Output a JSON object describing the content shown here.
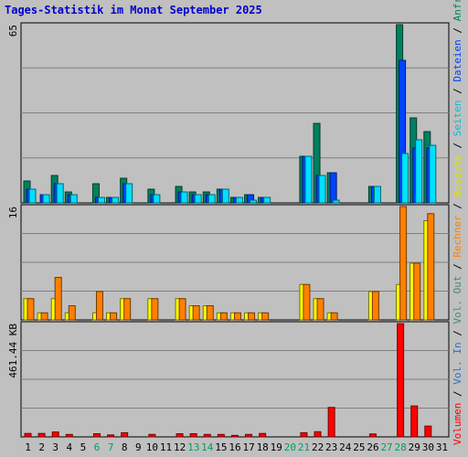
{
  "chart_data": {
    "type": "bar",
    "title": "Tages-Statistik im Monat September 2025",
    "categories": [
      "1",
      "2",
      "3",
      "4",
      "5",
      "6",
      "7",
      "8",
      "9",
      "10",
      "11",
      "12",
      "13",
      "14",
      "15",
      "16",
      "17",
      "18",
      "19",
      "20",
      "21",
      "22",
      "23",
      "24",
      "25",
      "26",
      "27",
      "28",
      "29",
      "30",
      "31"
    ],
    "weekend_days": [
      "6",
      "7",
      "13",
      "14",
      "20",
      "21",
      "27",
      "28"
    ],
    "panels": [
      {
        "id": "top",
        "axis_label": "65",
        "ylim": [
          0,
          65
        ],
        "series": [
          {
            "key": "hits",
            "color": "#008060",
            "values": [
              8,
              0,
              10,
              4,
              0,
              7,
              2,
              9,
              0,
              5,
              0,
              6,
              4,
              4,
              5,
              2,
              3,
              2,
              0,
              0,
              17,
              29,
              11,
              0,
              0,
              6,
              0,
              65,
              31,
              26,
              0
            ]
          },
          {
            "key": "files",
            "color": "#0042ff",
            "values": [
              5,
              3,
              7,
              3,
              0,
              2,
              2,
              7,
              0,
              3,
              0,
              4,
              3,
              3,
              5,
              2,
              3,
              2,
              0,
              0,
              17,
              10,
              11,
              0,
              0,
              6,
              0,
              52,
              20,
              20,
              0
            ]
          },
          {
            "key": "pages",
            "color": "#00e0ff",
            "values": [
              5,
              3,
              7,
              3,
              0,
              2,
              2,
              7,
              0,
              3,
              0,
              4,
              3,
              3,
              5,
              2,
              1,
              2,
              0,
              0,
              17,
              10,
              1,
              0,
              0,
              6,
              0,
              18,
              23,
              21,
              0
            ]
          }
        ]
      },
      {
        "id": "mid",
        "axis_label": "16",
        "ylim": [
          0,
          16
        ],
        "series": [
          {
            "key": "visits",
            "color": "#ffff00",
            "values": [
              3,
              1,
              3,
              1,
              0,
              1,
              1,
              3,
              0,
              3,
              0,
              3,
              2,
              2,
              1,
              1,
              1,
              1,
              0,
              0,
              5,
              3,
              1,
              0,
              0,
              4,
              0,
              5,
              8,
              14,
              0
            ]
          },
          {
            "key": "hosts",
            "color": "#ff8000",
            "values": [
              3,
              1,
              6,
              2,
              0,
              4,
              1,
              3,
              0,
              3,
              0,
              3,
              2,
              2,
              1,
              1,
              1,
              1,
              0,
              0,
              5,
              3,
              1,
              0,
              0,
              4,
              0,
              16,
              8,
              15,
              0
            ]
          }
        ]
      },
      {
        "id": "bot",
        "axis_label": "461.44 KB",
        "ylim": [
          0,
          461.44
        ],
        "series": [
          {
            "key": "volume",
            "color": "#ff0000",
            "values": [
              14,
              14,
              20,
              10,
              0,
              13,
              8,
              17,
              0,
              10,
              0,
              13,
              13,
              10,
              10,
              6,
              10,
              14,
              0,
              0,
              17,
              21,
              120,
              0,
              0,
              12,
              0,
              461,
              126,
              44,
              0
            ]
          }
        ]
      }
    ],
    "right_legend": [
      {
        "text": "Volumen",
        "color": "#ff0000"
      },
      {
        "text": " / ",
        "color": "#000000"
      },
      {
        "text": "Vol. In",
        "color": "#2e6fbf"
      },
      {
        "text": " / ",
        "color": "#000000"
      },
      {
        "text": "Vol. Out",
        "color": "#4a8a6a"
      },
      {
        "text": " / ",
        "color": "#000000"
      },
      {
        "text": "Rechner",
        "color": "#ff8000"
      },
      {
        "text": " / ",
        "color": "#000000"
      },
      {
        "text": "Besuche",
        "color": "#e0e000"
      },
      {
        "text": " / ",
        "color": "#000000"
      },
      {
        "text": "Seiten",
        "color": "#00c0e0"
      },
      {
        "text": " / ",
        "color": "#000000"
      },
      {
        "text": "Dateien",
        "color": "#0042ff"
      },
      {
        "text": " / ",
        "color": "#000000"
      },
      {
        "text": "Anfragen",
        "color": "#008060"
      }
    ],
    "colors": {
      "background": "#c0c0c0",
      "title": "#0000cc",
      "grid": "#808080",
      "weekday_label": "#000000",
      "weekend_label": "#00a060"
    }
  }
}
